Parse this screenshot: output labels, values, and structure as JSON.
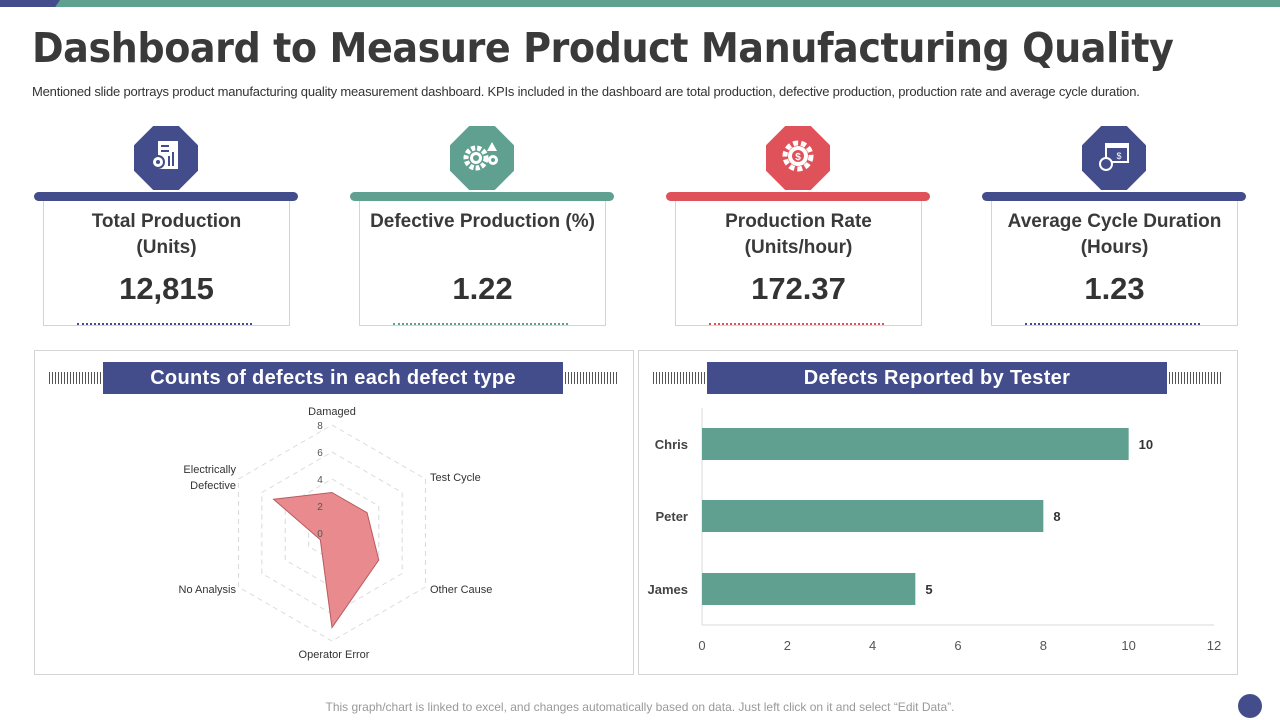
{
  "title": "Dashboard to Measure Product Manufacturing Quality",
  "subtitle": "Mentioned slide portrays product manufacturing quality measurement dashboard. KPIs included in the dashboard are total production, defective production, production rate and average cycle duration.",
  "colors": {
    "navy": "#444d8c",
    "teal": "#5fa090",
    "red": "#e0525a",
    "radar_fill": "#e88a8e"
  },
  "kpis": [
    {
      "label1": "Total Production",
      "label2": "(Units)",
      "value": "12,815",
      "color": "#444d8c",
      "icon": "report-gear-chart-icon"
    },
    {
      "label1": "Defective Production  (%)",
      "label2": "",
      "value": "1.22",
      "color": "#5fa090",
      "icon": "gears-warning-icon"
    },
    {
      "label1": "Production  Rate",
      "label2": "(Units/hour)",
      "value": "172.37",
      "color": "#e0525a",
      "icon": "gear-dollar-icon"
    },
    {
      "label1": "Average Cycle Duration",
      "label2": "(Hours)",
      "value": "1.23",
      "color": "#444d8c",
      "icon": "calendar-stopwatch-icon"
    }
  ],
  "footer": "This graph/chart is linked to excel, and changes automatically based on data. Just left click on it and select “Edit Data”.",
  "chart_data": [
    {
      "type": "radar",
      "title": "Counts of defects in each defect type",
      "categories": [
        "Damaged",
        "Test Cycle",
        "Other Cause",
        "Operator Error",
        "No Analysis",
        "Electrically Defective"
      ],
      "values": [
        3,
        3,
        4,
        7,
        1,
        5
      ],
      "rlim": [
        0,
        8
      ],
      "ticks": [
        "0",
        "2",
        "4",
        "6",
        "8"
      ],
      "grid": true
    },
    {
      "type": "bar",
      "orientation": "horizontal",
      "title": "Defects Reported by Tester",
      "categories": [
        "Chris",
        "Peter",
        "James"
      ],
      "values": [
        10,
        8,
        5
      ],
      "xlim": [
        0,
        12
      ],
      "xticks": [
        "0",
        "2",
        "4",
        "6",
        "8",
        "10",
        "12"
      ],
      "grid": false,
      "data_labels": [
        "10",
        "8",
        "5"
      ]
    }
  ]
}
